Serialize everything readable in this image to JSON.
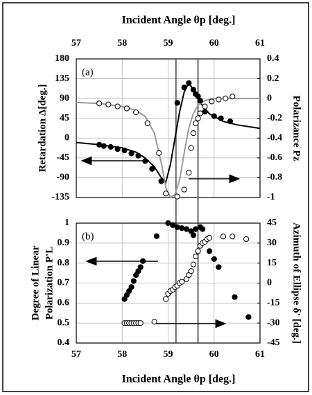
{
  "chart_data": [
    {
      "type": "scatter",
      "xlabel": "Incident Angle θp [deg.]",
      "panel_label": "(a)",
      "ylabel": [
        "Retardation Δ[deg.]"
      ],
      "y2label": [
        "Polarizance Pz"
      ],
      "xlim": [
        57,
        61
      ],
      "xticks": [
        57,
        58,
        59,
        60,
        61
      ],
      "ylim": [
        -135,
        180
      ],
      "yticks": [
        -135,
        -90,
        -45,
        0,
        45,
        90,
        135,
        180
      ],
      "y2lim": [
        -1,
        0.4
      ],
      "y2ticks": [
        -1,
        -0.8,
        -0.6,
        -0.4,
        -0.2,
        0,
        0.2,
        0.4
      ],
      "grid": true,
      "vlines": [
        59.17,
        59.65
      ],
      "series": [
        {
          "style": "line",
          "color": "#000000",
          "axis": "y",
          "x": [
            57,
            57.5,
            58,
            58.3,
            58.5,
            58.7,
            58.85,
            58.95,
            59.05,
            59.15,
            59.25,
            59.35,
            59.45,
            59.55,
            59.7,
            59.9,
            60.2,
            60.5,
            61
          ],
          "values": [
            -10,
            -15,
            -22,
            -32,
            -45,
            -65,
            -90,
            -100,
            -60,
            0,
            60,
            105,
            125,
            110,
            80,
            55,
            38,
            30,
            22
          ]
        },
        {
          "style": "line",
          "color": "#999999",
          "axis": "y2",
          "x": [
            57,
            57.5,
            58,
            58.3,
            58.5,
            58.7,
            58.85,
            58.95,
            59.05,
            59.15,
            59.25,
            59.35,
            59.45,
            59.55,
            59.65,
            59.8,
            60,
            60.5,
            61
          ],
          "values": [
            -0.04,
            -0.05,
            -0.08,
            -0.12,
            -0.18,
            -0.35,
            -0.65,
            -0.9,
            -1,
            -0.97,
            -0.82,
            -0.55,
            -0.3,
            -0.15,
            -0.07,
            -0.02,
            0,
            0,
            0
          ]
        },
        {
          "style": "filled",
          "color": "#000000",
          "axis": "y",
          "x": [
            57.5,
            57.6,
            57.75,
            57.9,
            58.05,
            58.2,
            58.35,
            58.5,
            58.65,
            58.85,
            59.2,
            59.35,
            59.45,
            59.55,
            59.6,
            59.65,
            59.7,
            59.8,
            60.0,
            60.15,
            60.35
          ],
          "values": [
            -15,
            -18,
            -20,
            -25,
            -28,
            -35,
            -40,
            -52,
            -70,
            -98,
            80,
            115,
            125,
            110,
            100,
            95,
            85,
            60,
            50,
            45,
            38
          ]
        },
        {
          "style": "open",
          "color": "#000000",
          "axis": "y2",
          "x": [
            57.5,
            57.7,
            57.9,
            58.1,
            58.3,
            58.55,
            58.8,
            58.95,
            59.2,
            59.35,
            59.45,
            59.5,
            59.55,
            59.6,
            59.65,
            59.7,
            59.8,
            59.95,
            60.1,
            60.25,
            60.4
          ],
          "values": [
            -0.05,
            -0.06,
            -0.08,
            -0.1,
            -0.14,
            -0.25,
            -0.55,
            -0.96,
            -0.99,
            -0.92,
            -0.75,
            -0.5,
            -0.35,
            -0.25,
            -0.2,
            -0.15,
            -0.08,
            -0.03,
            -0.01,
            0,
            0.02
          ]
        }
      ]
    },
    {
      "type": "scatter",
      "xlabel": "Incident Angle θp [deg.]",
      "panel_label": "(b)",
      "ylabel": [
        "Degree of Linear",
        "Polarization P'L"
      ],
      "y2label": [
        "Azimuth of Ellipse δ' [deg.]"
      ],
      "xlim": [
        57,
        61
      ],
      "xticks": [
        57,
        58,
        59,
        60,
        61
      ],
      "ylim": [
        0.4,
        1
      ],
      "yticks": [
        0.4,
        0.5,
        0.6,
        0.7,
        0.8,
        0.9,
        1
      ],
      "y2lim": [
        -45,
        45
      ],
      "y2ticks": [
        -45,
        -30,
        -15,
        0,
        15,
        30,
        45
      ],
      "grid": true,
      "series": [
        {
          "style": "filled",
          "color": "#000000",
          "axis": "y",
          "x": [
            58.05,
            58.1,
            58.15,
            58.2,
            58.25,
            58.3,
            58.35,
            58.4,
            58.45,
            58.75,
            59.0,
            59.1,
            59.2,
            59.3,
            59.4,
            59.5,
            59.55,
            59.6,
            59.7,
            59.75,
            59.9,
            60.0,
            60.1,
            60.45,
            60.75
          ],
          "values": [
            0.62,
            0.64,
            0.66,
            0.68,
            0.71,
            0.74,
            0.76,
            0.78,
            0.81,
            0.935,
            1.0,
            0.99,
            0.98,
            0.975,
            0.97,
            0.96,
            0.94,
            0.97,
            0.98,
            0.97,
            0.86,
            0.82,
            0.78,
            0.63,
            0.53
          ]
        },
        {
          "style": "open",
          "color": "#000000",
          "axis": "y2",
          "x": [
            58.05,
            58.1,
            58.15,
            58.2,
            58.25,
            58.3,
            58.35,
            58.4,
            58.7,
            58.95,
            59.0,
            59.05,
            59.1,
            59.15,
            59.2,
            59.25,
            59.3,
            59.4,
            59.45,
            59.5,
            59.55,
            59.6,
            59.65,
            59.7,
            59.75,
            59.8,
            59.85,
            59.9,
            60.2,
            60.4,
            60.7
          ],
          "values": [
            -30,
            -30,
            -30,
            -30,
            -30,
            -30,
            -30,
            -30,
            -29,
            -12,
            -8,
            -6,
            -5,
            -3,
            -2,
            0,
            1,
            3,
            6,
            9,
            14,
            20,
            24,
            28,
            30,
            31,
            33,
            34,
            35,
            35,
            33
          ]
        }
      ]
    }
  ]
}
